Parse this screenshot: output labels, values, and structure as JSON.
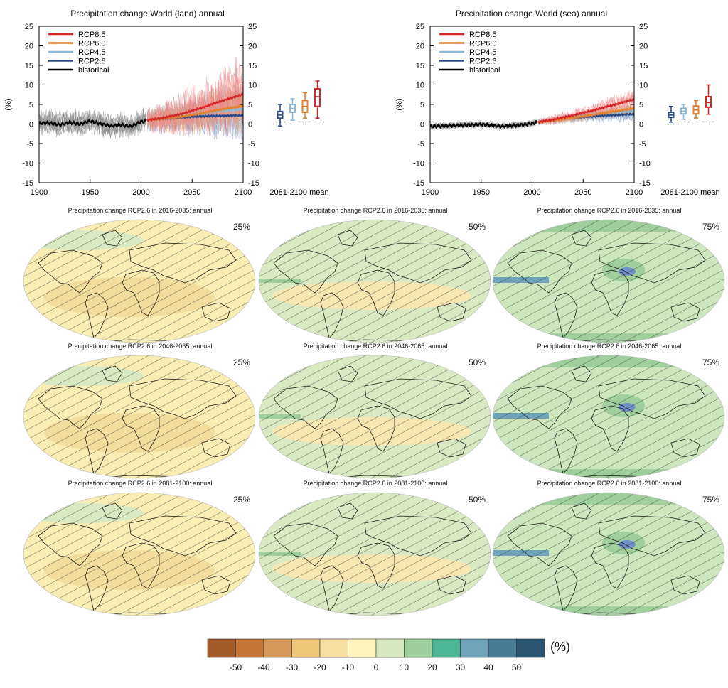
{
  "colors": {
    "rcp85": "#d62728",
    "rcp60": "#e6812e",
    "rcp45": "#8ab8d8",
    "rcp26": "#2b4b8c",
    "historical": "#000000",
    "hist_spread": "#8c8c8c",
    "hatch": "#222222",
    "scale": [
      "#a45c2a",
      "#c27638",
      "#d5985a",
      "#eec77b",
      "#f6e0a2",
      "#fff5bf",
      "#d7e8c0",
      "#9ecf9c",
      "#4db795",
      "#6fa4b8",
      "#4a7c96",
      "#2b5570"
    ]
  },
  "timeseries": [
    {
      "title": "Precipitation change World (land) annual",
      "ylabel": "(%)",
      "boxplot_label": "2081-2100 mean"
    },
    {
      "title": "Precipitation change World (sea) annual",
      "ylabel": "(%)",
      "boxplot_label": "2081-2100 mean"
    }
  ],
  "chart_data": [
    {
      "type": "line",
      "title": "Precipitation change World (land) annual",
      "ylabel": "(%)",
      "xlim": [
        1900,
        2100
      ],
      "ylim": [
        -15,
        25
      ],
      "xticks": [
        1900,
        1950,
        2000,
        2050,
        2100
      ],
      "yticks": [
        -15,
        -10,
        -5,
        0,
        5,
        10,
        15,
        20,
        25
      ],
      "legend_position": "top-left",
      "series": [
        {
          "name": "historical",
          "x": [
            1900,
            1910,
            1920,
            1930,
            1940,
            1950,
            1960,
            1970,
            1980,
            1990,
            2000,
            2005
          ],
          "values": [
            0.2,
            0.3,
            -0.2,
            0.4,
            0.0,
            0.8,
            0.1,
            -0.5,
            -0.2,
            -0.6,
            0.6,
            0.8
          ]
        },
        {
          "name": "RCP2.6",
          "x": [
            2006,
            2020,
            2040,
            2060,
            2080,
            2100
          ],
          "values": [
            1.0,
            1.3,
            1.7,
            2.0,
            2.1,
            2.2
          ]
        },
        {
          "name": "RCP4.5",
          "x": [
            2006,
            2020,
            2040,
            2060,
            2080,
            2100
          ],
          "values": [
            1.0,
            1.4,
            2.1,
            2.8,
            3.4,
            3.8
          ]
        },
        {
          "name": "RCP6.0",
          "x": [
            2006,
            2020,
            2040,
            2060,
            2080,
            2100
          ],
          "values": [
            1.0,
            1.3,
            1.9,
            2.8,
            3.8,
            4.6
          ]
        },
        {
          "name": "RCP8.5",
          "x": [
            2006,
            2020,
            2040,
            2060,
            2080,
            2100
          ],
          "values": [
            1.0,
            1.5,
            2.6,
            4.2,
            6.0,
            7.6
          ]
        }
      ],
      "boxplots": {
        "label": "2081-2100 mean",
        "items": [
          {
            "name": "RCP2.6",
            "min": -0.5,
            "q1": 1.5,
            "median": 2.3,
            "q3": 3.2,
            "max": 5.0
          },
          {
            "name": "RCP4.5",
            "min": 1.0,
            "q1": 3.0,
            "median": 4.0,
            "q3": 5.0,
            "max": 6.5
          },
          {
            "name": "RCP6.0",
            "min": 1.5,
            "q1": 3.0,
            "median": 4.5,
            "q3": 6.0,
            "max": 8.0
          },
          {
            "name": "RCP8.5",
            "min": 1.5,
            "q1": 4.5,
            "median": 7.0,
            "q3": 9.0,
            "max": 11.0
          }
        ]
      }
    },
    {
      "type": "line",
      "title": "Precipitation change World (sea) annual",
      "ylabel": "(%)",
      "xlim": [
        1900,
        2100
      ],
      "ylim": [
        -15,
        25
      ],
      "xticks": [
        1900,
        1950,
        2000,
        2050,
        2100
      ],
      "yticks": [
        -15,
        -10,
        -5,
        0,
        5,
        10,
        15,
        20,
        25
      ],
      "legend_position": "top-left",
      "series": [
        {
          "name": "historical",
          "x": [
            1900,
            1910,
            1920,
            1930,
            1940,
            1950,
            1960,
            1970,
            1980,
            1990,
            2000,
            2005
          ],
          "values": [
            -0.6,
            -0.5,
            -0.4,
            -0.3,
            -0.2,
            -0.1,
            -0.3,
            -0.6,
            -0.4,
            -0.2,
            0.2,
            0.4
          ]
        },
        {
          "name": "RCP2.6",
          "x": [
            2006,
            2020,
            2040,
            2060,
            2080,
            2100
          ],
          "values": [
            0.5,
            1.0,
            1.6,
            2.0,
            2.3,
            2.5
          ]
        },
        {
          "name": "RCP4.5",
          "x": [
            2006,
            2020,
            2040,
            2060,
            2080,
            2100
          ],
          "values": [
            0.5,
            1.0,
            1.8,
            2.5,
            3.0,
            3.4
          ]
        },
        {
          "name": "RCP6.0",
          "x": [
            2006,
            2020,
            2040,
            2060,
            2080,
            2100
          ],
          "values": [
            0.5,
            0.9,
            1.6,
            2.4,
            3.2,
            4.0
          ]
        },
        {
          "name": "RCP8.5",
          "x": [
            2006,
            2020,
            2040,
            2060,
            2080,
            2100
          ],
          "values": [
            0.5,
            1.1,
            2.2,
            3.5,
            4.9,
            6.3
          ]
        }
      ],
      "boxplots": {
        "label": "2081-2100 mean",
        "items": [
          {
            "name": "RCP2.6",
            "min": 0.5,
            "q1": 1.7,
            "median": 2.3,
            "q3": 3.0,
            "max": 4.5
          },
          {
            "name": "RCP4.5",
            "min": 1.2,
            "q1": 2.6,
            "median": 3.3,
            "q3": 4.0,
            "max": 5.0
          },
          {
            "name": "RCP6.0",
            "min": 1.5,
            "q1": 2.6,
            "median": 3.6,
            "q3": 4.6,
            "max": 6.0
          },
          {
            "name": "RCP8.5",
            "min": 2.5,
            "q1": 4.3,
            "median": 5.5,
            "q3": 7.0,
            "max": 10.0
          }
        ]
      }
    }
  ],
  "maps": {
    "titles": [
      "Precipitation change RCP2.6 in 2016-2035: annual",
      "Precipitation change RCP2.6 in 2046-2065: annual",
      "Precipitation change RCP2.6 in 2081-2100: annual"
    ],
    "percentiles": [
      "25%",
      "50%",
      "75%"
    ],
    "base_colors": [
      "#f8edb3",
      "#d9e9c2",
      "#cde6bd"
    ]
  },
  "colorbar": {
    "labels": [
      "-50",
      "-40",
      "-30",
      "-20",
      "-10",
      "0",
      "10",
      "20",
      "30",
      "40",
      "50"
    ],
    "unit": "(%)"
  }
}
